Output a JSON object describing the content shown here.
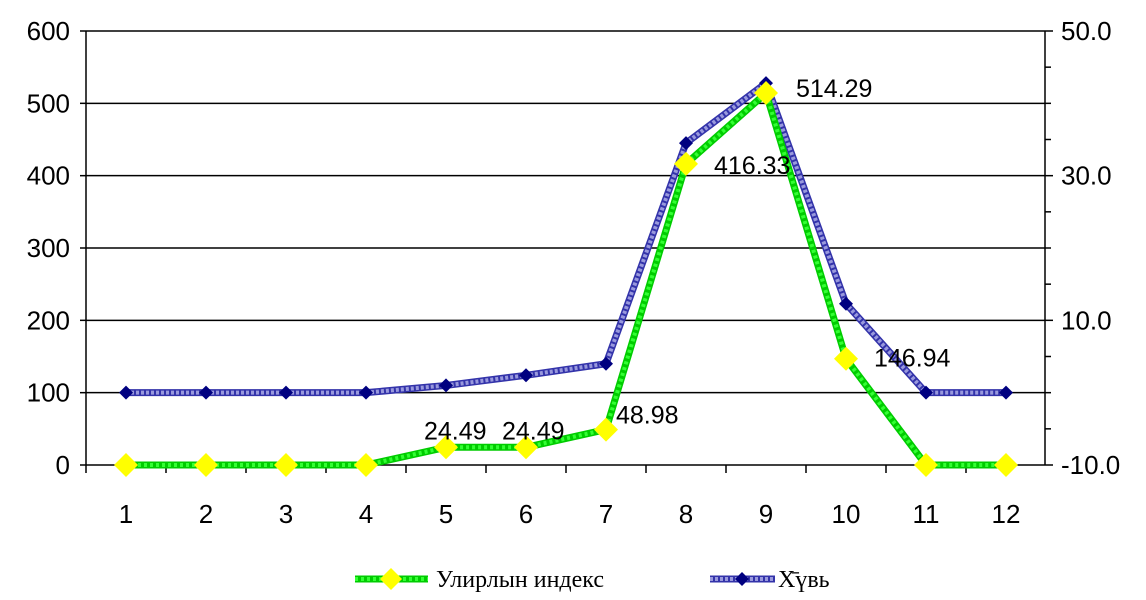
{
  "chart_data": {
    "type": "line",
    "categories": [
      "1",
      "2",
      "3",
      "4",
      "5",
      "6",
      "7",
      "8",
      "9",
      "10",
      "11",
      "12"
    ],
    "left_axis": {
      "range": [
        0,
        600
      ],
      "ticks": [
        0,
        100,
        200,
        300,
        400,
        500,
        600
      ],
      "tick_labels": [
        "0",
        "100",
        "200",
        "300",
        "400",
        "500",
        "600"
      ]
    },
    "right_axis": {
      "range": [
        -10,
        50
      ],
      "ticks": [
        -10,
        10,
        30,
        50
      ],
      "tick_labels": [
        "-10.0",
        "10.0",
        "30.0",
        "50.0"
      ]
    },
    "grid": "horizontal",
    "legend_position": "bottom",
    "series": [
      {
        "name": "Улирлын индекс",
        "axis": "left",
        "color": "#33ff33",
        "marker_color": "#ffff00",
        "marker": "diamond",
        "values": [
          0,
          0,
          0,
          0,
          24.49,
          24.49,
          48.98,
          416.33,
          514.29,
          146.94,
          0,
          0
        ],
        "data_labels": [
          "",
          "",
          "",
          "",
          "24.49",
          "24.49",
          "48.98",
          "416.33",
          "514.29",
          "146.94",
          "",
          ""
        ]
      },
      {
        "name": "Х̄үвь",
        "axis": "right",
        "color": "#9999dd",
        "marker_color": "#000080",
        "marker": "diamond",
        "values": [
          0,
          0,
          0,
          0,
          1,
          2.4,
          4,
          34.5,
          42.8,
          12.3,
          0,
          0
        ]
      }
    ]
  }
}
